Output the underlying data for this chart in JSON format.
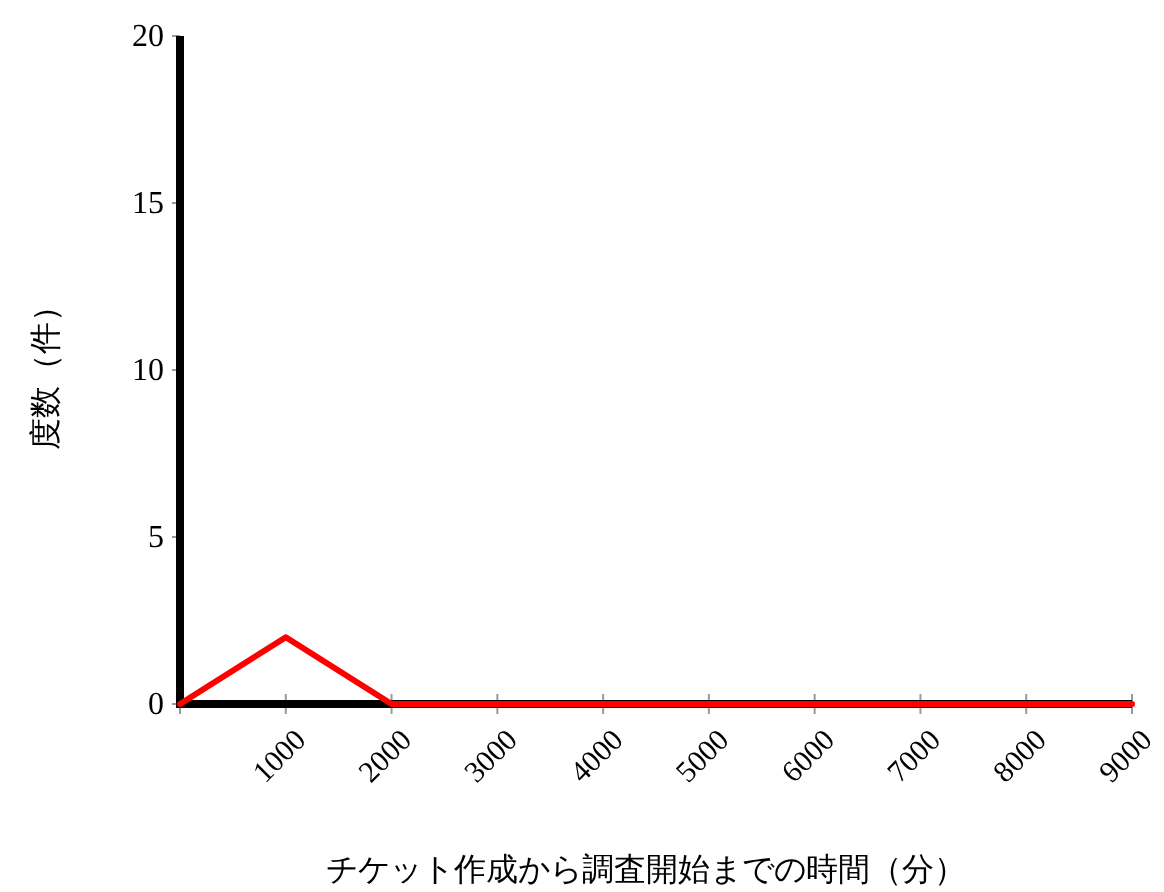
{
  "chart_data": {
    "type": "line",
    "xlabel": "チケット作成から調査開始までの時間（分）",
    "ylabel": "度数（件）",
    "x": [
      0,
      1000,
      2000,
      3000,
      4000,
      5000,
      6000,
      7000,
      8000,
      9000
    ],
    "series": [
      {
        "color": "#ff0000",
        "values": [
          0,
          2,
          0,
          0,
          0,
          0,
          0,
          0,
          0,
          0
        ]
      }
    ],
    "xlim": [
      0,
      9000
    ],
    "ylim": [
      0,
      20
    ],
    "xticks": [
      {
        "value": 0,
        "label": null
      },
      1000,
      2000,
      3000,
      4000,
      5000,
      6000,
      7000,
      8000,
      9000
    ],
    "yticks": [
      0,
      5,
      10,
      15,
      20
    ],
    "grid": false,
    "marker": "none",
    "line_style": "solid"
  }
}
